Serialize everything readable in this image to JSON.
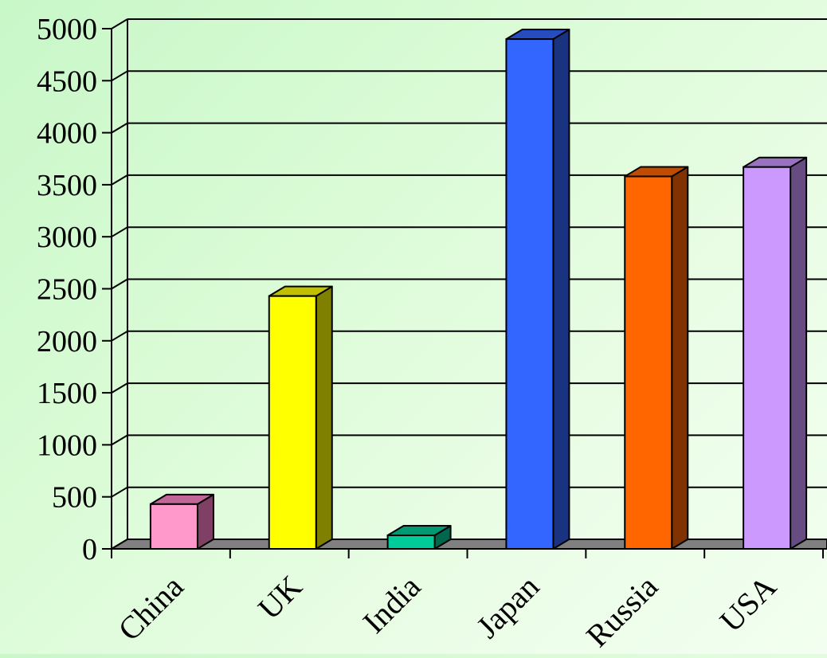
{
  "chart_data": {
    "type": "bar",
    "style": "3d-column",
    "categories": [
      "China",
      "UK",
      "India",
      "Japan",
      "Russia",
      "USA"
    ],
    "values": [
      430,
      2430,
      130,
      4900,
      3580,
      3670
    ],
    "ylim": [
      0,
      5000
    ],
    "yticks": [
      0,
      500,
      1000,
      1500,
      2000,
      2500,
      3000,
      3500,
      4000,
      4500,
      5000
    ],
    "grid": true,
    "legend": "none",
    "colors": [
      {
        "front": "#ff99cc",
        "side": "#804066",
        "top": "#c06698"
      },
      {
        "front": "#ffff00",
        "side": "#808000",
        "top": "#c0c000"
      },
      {
        "front": "#00cc99",
        "side": "#00664c",
        "top": "#009972"
      },
      {
        "front": "#3366ff",
        "side": "#1a3380",
        "top": "#264cbf"
      },
      {
        "front": "#ff6600",
        "side": "#803300",
        "top": "#bf4c00"
      },
      {
        "front": "#cc99ff",
        "side": "#664c80",
        "top": "#9972bf"
      }
    ],
    "floor_color": "#808080",
    "background_colors": [
      "#c8f7c8",
      "#f2fff0"
    ]
  }
}
